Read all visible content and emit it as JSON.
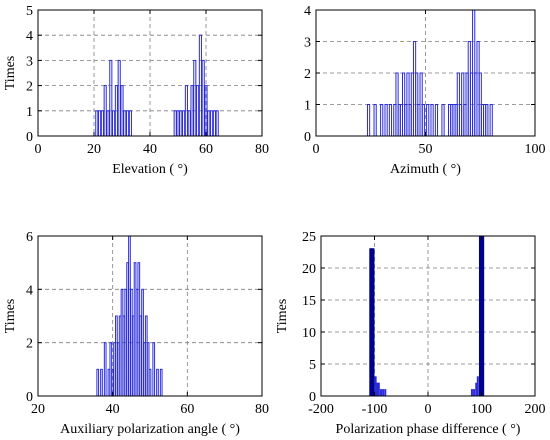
{
  "colors": {
    "bar": "#2b2bd9",
    "bar_light": "#9f9ff0",
    "bar_dark": "#00008b"
  },
  "chart_data": [
    {
      "type": "bar",
      "xlabel": "Elevation ( °)",
      "ylabel": "Times",
      "xlim": [
        0,
        80
      ],
      "ylim": [
        0,
        5
      ],
      "xticks": [
        0,
        20,
        40,
        60,
        80
      ],
      "yticks": [
        0,
        1,
        2,
        3,
        4,
        5
      ],
      "grid": true,
      "bins": [
        {
          "x": 21,
          "count": 1
        },
        {
          "x": 22,
          "count": 1
        },
        {
          "x": 23,
          "count": 1
        },
        {
          "x": 24,
          "count": 2
        },
        {
          "x": 25,
          "count": 1
        },
        {
          "x": 26,
          "count": 3
        },
        {
          "x": 27,
          "count": 1
        },
        {
          "x": 28,
          "count": 2
        },
        {
          "x": 29,
          "count": 3
        },
        {
          "x": 30,
          "count": 2
        },
        {
          "x": 31,
          "count": 1
        },
        {
          "x": 32,
          "count": 1
        },
        {
          "x": 33,
          "count": 1
        },
        {
          "x": 49,
          "count": 1
        },
        {
          "x": 50,
          "count": 1
        },
        {
          "x": 51,
          "count": 1
        },
        {
          "x": 52,
          "count": 1
        },
        {
          "x": 53,
          "count": 2
        },
        {
          "x": 54,
          "count": 1
        },
        {
          "x": 55,
          "count": 2
        },
        {
          "x": 56,
          "count": 3
        },
        {
          "x": 57,
          "count": 2
        },
        {
          "x": 58,
          "count": 4
        },
        {
          "x": 59,
          "count": 3
        },
        {
          "x": 60,
          "count": 2
        },
        {
          "x": 61,
          "count": 1
        },
        {
          "x": 62,
          "count": 1
        },
        {
          "x": 63,
          "count": 1
        },
        {
          "x": 64,
          "count": 1
        }
      ]
    },
    {
      "type": "bar",
      "xlabel": "Azimuth ( °)",
      "ylabel": "",
      "xlim": [
        0,
        100
      ],
      "ylim": [
        0,
        4
      ],
      "xticks": [
        0,
        50,
        100
      ],
      "yticks": [
        0,
        1,
        2,
        3,
        4
      ],
      "grid": true,
      "bins": [
        {
          "x": 24,
          "count": 1
        },
        {
          "x": 27,
          "count": 1
        },
        {
          "x": 30,
          "count": 1
        },
        {
          "x": 32,
          "count": 1
        },
        {
          "x": 34,
          "count": 1
        },
        {
          "x": 36,
          "count": 1
        },
        {
          "x": 37,
          "count": 2
        },
        {
          "x": 38,
          "count": 1
        },
        {
          "x": 39,
          "count": 1
        },
        {
          "x": 40,
          "count": 2
        },
        {
          "x": 41,
          "count": 1
        },
        {
          "x": 42,
          "count": 2
        },
        {
          "x": 43,
          "count": 1
        },
        {
          "x": 44,
          "count": 2
        },
        {
          "x": 45,
          "count": 3
        },
        {
          "x": 46,
          "count": 2
        },
        {
          "x": 47,
          "count": 1
        },
        {
          "x": 48,
          "count": 2
        },
        {
          "x": 49,
          "count": 1
        },
        {
          "x": 51,
          "count": 1
        },
        {
          "x": 53,
          "count": 1
        },
        {
          "x": 55,
          "count": 1
        },
        {
          "x": 58,
          "count": 1
        },
        {
          "x": 61,
          "count": 1
        },
        {
          "x": 62,
          "count": 1
        },
        {
          "x": 63,
          "count": 1
        },
        {
          "x": 64,
          "count": 1
        },
        {
          "x": 65,
          "count": 2
        },
        {
          "x": 66,
          "count": 1
        },
        {
          "x": 67,
          "count": 2
        },
        {
          "x": 68,
          "count": 1
        },
        {
          "x": 69,
          "count": 2
        },
        {
          "x": 70,
          "count": 3
        },
        {
          "x": 71,
          "count": 2
        },
        {
          "x": 72,
          "count": 4
        },
        {
          "x": 73,
          "count": 2
        },
        {
          "x": 74,
          "count": 3
        },
        {
          "x": 75,
          "count": 2
        },
        {
          "x": 76,
          "count": 1
        },
        {
          "x": 77,
          "count": 1
        },
        {
          "x": 78,
          "count": 1
        },
        {
          "x": 80,
          "count": 1
        }
      ]
    },
    {
      "type": "bar",
      "xlabel": "Auxiliary polarization angle ( °)",
      "ylabel": "Times",
      "xlim": [
        20,
        80
      ],
      "ylim": [
        0,
        6
      ],
      "xticks": [
        20,
        40,
        60,
        80
      ],
      "yticks": [
        0,
        2,
        4,
        6
      ],
      "grid": true,
      "bins": [
        {
          "x": 36.0,
          "count": 1
        },
        {
          "x": 37.0,
          "count": 1
        },
        {
          "x": 38.0,
          "count": 2
        },
        {
          "x": 39.0,
          "count": 1
        },
        {
          "x": 39.5,
          "count": 2
        },
        {
          "x": 40.0,
          "count": 1
        },
        {
          "x": 40.5,
          "count": 2
        },
        {
          "x": 41.0,
          "count": 3
        },
        {
          "x": 41.5,
          "count": 2
        },
        {
          "x": 42.0,
          "count": 3
        },
        {
          "x": 42.5,
          "count": 4
        },
        {
          "x": 43.0,
          "count": 3
        },
        {
          "x": 43.5,
          "count": 4
        },
        {
          "x": 44.0,
          "count": 5
        },
        {
          "x": 44.5,
          "count": 6
        },
        {
          "x": 45.0,
          "count": 4
        },
        {
          "x": 45.5,
          "count": 3
        },
        {
          "x": 46.0,
          "count": 5
        },
        {
          "x": 46.5,
          "count": 4
        },
        {
          "x": 47.0,
          "count": 5
        },
        {
          "x": 47.5,
          "count": 3
        },
        {
          "x": 48.0,
          "count": 4
        },
        {
          "x": 48.5,
          "count": 2
        },
        {
          "x": 49.0,
          "count": 3
        },
        {
          "x": 49.5,
          "count": 2
        },
        {
          "x": 50.0,
          "count": 1
        },
        {
          "x": 51.0,
          "count": 2
        },
        {
          "x": 52.0,
          "count": 1
        },
        {
          "x": 53.0,
          "count": 1
        }
      ]
    },
    {
      "type": "bar",
      "xlabel": "Polarization phase difference ( °)",
      "ylabel": "Times",
      "xlim": [
        -200,
        200
      ],
      "ylim": [
        0,
        25
      ],
      "xticks": [
        -200,
        -100,
        0,
        100,
        200
      ],
      "yticks": [
        0,
        5,
        10,
        15,
        20,
        25
      ],
      "grid": true,
      "bins": [
        {
          "x": -108,
          "count": 23
        },
        {
          "x": -106,
          "count": 23
        },
        {
          "x": -104,
          "count": 23
        },
        {
          "x": -102,
          "count": 23
        },
        {
          "x": -98,
          "count": 3
        },
        {
          "x": -95,
          "count": 2
        },
        {
          "x": -92,
          "count": 2
        },
        {
          "x": -88,
          "count": 1
        },
        {
          "x": -84,
          "count": 1
        },
        {
          "x": -80,
          "count": 1
        },
        {
          "x": 82,
          "count": 1
        },
        {
          "x": 86,
          "count": 1
        },
        {
          "x": 90,
          "count": 2
        },
        {
          "x": 93,
          "count": 3
        },
        {
          "x": 97,
          "count": 25
        },
        {
          "x": 99,
          "count": 25
        },
        {
          "x": 101,
          "count": 25
        },
        {
          "x": 103,
          "count": 25
        }
      ]
    }
  ]
}
